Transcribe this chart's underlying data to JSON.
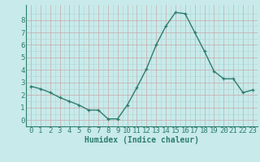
{
  "x": [
    0,
    1,
    2,
    3,
    4,
    5,
    6,
    7,
    8,
    9,
    10,
    11,
    12,
    13,
    14,
    15,
    16,
    17,
    18,
    19,
    20,
    21,
    22,
    23
  ],
  "y": [
    2.7,
    2.5,
    2.2,
    1.8,
    1.5,
    1.2,
    0.8,
    0.8,
    0.1,
    0.1,
    1.2,
    2.6,
    4.1,
    6.0,
    7.5,
    8.6,
    8.5,
    7.0,
    5.5,
    3.9,
    3.3,
    3.3,
    2.2,
    2.4
  ],
  "line_color": "#2e7d6e",
  "bg_color": "#c8eaea",
  "xlabel": "Humidex (Indice chaleur)",
  "xlabel_fontsize": 7,
  "tick_fontsize": 6.5,
  "xlim": [
    -0.5,
    23.5
  ],
  "ylim": [
    -0.5,
    9.2
  ],
  "yticks": [
    0,
    1,
    2,
    3,
    4,
    5,
    6,
    7,
    8
  ],
  "xticks": [
    0,
    1,
    2,
    3,
    4,
    5,
    6,
    7,
    8,
    9,
    10,
    11,
    12,
    13,
    14,
    15,
    16,
    17,
    18,
    19,
    20,
    21,
    22,
    23
  ],
  "marker": "+",
  "marker_size": 3.5,
  "line_width": 1.0
}
